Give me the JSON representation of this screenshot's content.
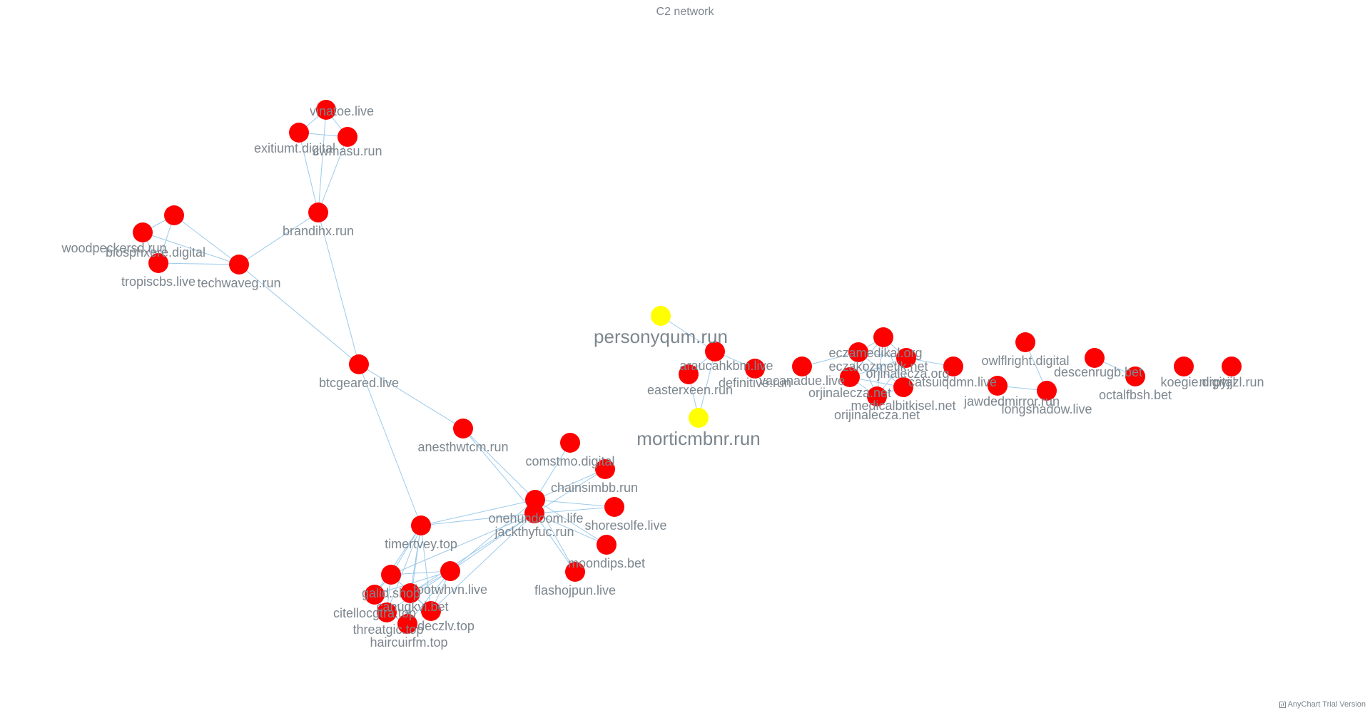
{
  "title": "C2 network",
  "credits": "AnyChart Trial Version",
  "colors": {
    "edge": "#9ccaeb",
    "node_default": "#ff0000",
    "node_highlight": "#ffff00",
    "label": "#7c868e"
  },
  "nodes": [
    {
      "id": "vinatoe.live"
    },
    {
      "id": "exitiumt.digital"
    },
    {
      "id": "cwmasu.run"
    },
    {
      "id": "brandihx.run"
    },
    {
      "id": "woodpeckersd.run"
    },
    {
      "id": "biosphxere.digital"
    },
    {
      "id": "tropiscbs.live"
    },
    {
      "id": "techwaveg.run"
    },
    {
      "id": "btcgeared.live"
    },
    {
      "id": "anesthwtcm.run"
    },
    {
      "id": "comstmo.digital"
    },
    {
      "id": "chainsimbb.run"
    },
    {
      "id": "onehundoom.life"
    },
    {
      "id": "jackthyfuc.run"
    },
    {
      "id": "shoresolfe.live"
    },
    {
      "id": "moondips.bet"
    },
    {
      "id": "flashojpun.live"
    },
    {
      "id": "timertvey.top"
    },
    {
      "id": "footwhvn.live"
    },
    {
      "id": "galid.shop"
    },
    {
      "id": "citellocgtra.top"
    },
    {
      "id": "canugkvi.bet"
    },
    {
      "id": "threatgic.top"
    },
    {
      "id": "deczlv.top"
    },
    {
      "id": "haircuirfm.top"
    },
    {
      "id": "personyqum.run",
      "highlight": true
    },
    {
      "id": "araucahkbm.live"
    },
    {
      "id": "easterxeen.run"
    },
    {
      "id": "definitive.run"
    },
    {
      "id": "morticmbnr.run",
      "highlight": true
    },
    {
      "id": "vacanadue.live"
    },
    {
      "id": "eczamedikal.org"
    },
    {
      "id": "eczakozmetik.net"
    },
    {
      "id": "orjinalecza.org"
    },
    {
      "id": "orjinalecza.net"
    },
    {
      "id": "medicalbitkisel.net"
    },
    {
      "id": "orijinalecza.net"
    },
    {
      "id": "catsuiqdmn.live"
    },
    {
      "id": "owlflright.digital"
    },
    {
      "id": "jawdedmirror.run"
    },
    {
      "id": "longshadow.live"
    },
    {
      "id": "descenrugb.bet"
    },
    {
      "id": "octalfbsh.bet"
    },
    {
      "id": "koegie.digital"
    },
    {
      "id": "nirpyjjzl.run"
    }
  ],
  "edges": [
    [
      "vinatoe.live",
      "exitiumt.digital"
    ],
    [
      "vinatoe.live",
      "cwmasu.run"
    ],
    [
      "vinatoe.live",
      "brandihx.run"
    ],
    [
      "exitiumt.digital",
      "cwmasu.run"
    ],
    [
      "exitiumt.digital",
      "brandihx.run"
    ],
    [
      "cwmasu.run",
      "brandihx.run"
    ],
    [
      "brandihx.run",
      "techwaveg.run"
    ],
    [
      "brandihx.run",
      "btcgeared.live"
    ],
    [
      "woodpeckersd.run",
      "biosphxere.digital"
    ],
    [
      "woodpeckersd.run",
      "tropiscbs.live"
    ],
    [
      "woodpeckersd.run",
      "techwaveg.run"
    ],
    [
      "biosphxere.digital",
      "tropiscbs.live"
    ],
    [
      "biosphxere.digital",
      "techwaveg.run"
    ],
    [
      "tropiscbs.live",
      "techwaveg.run"
    ],
    [
      "techwaveg.run",
      "btcgeared.live"
    ],
    [
      "btcgeared.live",
      "anesthwtcm.run"
    ],
    [
      "btcgeared.live",
      "timertvey.top"
    ],
    [
      "anesthwtcm.run",
      "onehundoom.life"
    ],
    [
      "anesthwtcm.run",
      "jackthyfuc.run"
    ],
    [
      "comstmo.digital",
      "onehundoom.life"
    ],
    [
      "chainsimbb.run",
      "onehundoom.life"
    ],
    [
      "chainsimbb.run",
      "jackthyfuc.run"
    ],
    [
      "onehundoom.life",
      "shoresolfe.live"
    ],
    [
      "onehundoom.life",
      "moondips.bet"
    ],
    [
      "onehundoom.life",
      "flashojpun.live"
    ],
    [
      "onehundoom.life",
      "jackthyfuc.run"
    ],
    [
      "onehundoom.life",
      "timertvey.top"
    ],
    [
      "onehundoom.life",
      "footwhvn.live"
    ],
    [
      "jackthyfuc.run",
      "shoresolfe.live"
    ],
    [
      "jackthyfuc.run",
      "moondips.bet"
    ],
    [
      "jackthyfuc.run",
      "flashojpun.live"
    ],
    [
      "jackthyfuc.run",
      "timertvey.top"
    ],
    [
      "jackthyfuc.run",
      "footwhvn.live"
    ],
    [
      "jackthyfuc.run",
      "galid.shop"
    ],
    [
      "jackthyfuc.run",
      "canugkvi.bet"
    ],
    [
      "jackthyfuc.run",
      "deczlv.top"
    ],
    [
      "timertvey.top",
      "galid.shop"
    ],
    [
      "timertvey.top",
      "citellocgtra.top"
    ],
    [
      "timertvey.top",
      "canugkvi.bet"
    ],
    [
      "timertvey.top",
      "threatgic.top"
    ],
    [
      "timertvey.top",
      "deczlv.top"
    ],
    [
      "timertvey.top",
      "haircuirfm.top"
    ],
    [
      "footwhvn.live",
      "galid.shop"
    ],
    [
      "footwhvn.live",
      "citellocgtra.top"
    ],
    [
      "footwhvn.live",
      "canugkvi.bet"
    ],
    [
      "footwhvn.live",
      "threatgic.top"
    ],
    [
      "footwhvn.live",
      "deczlv.top"
    ],
    [
      "footwhvn.live",
      "haircuirfm.top"
    ],
    [
      "galid.shop",
      "citellocgtra.top"
    ],
    [
      "galid.shop",
      "threatgic.top"
    ],
    [
      "galid.shop",
      "canugkvi.bet"
    ],
    [
      "citellocgtra.top",
      "threatgic.top"
    ],
    [
      "canugkvi.bet",
      "deczlv.top"
    ],
    [
      "threatgic.top",
      "haircuirfm.top"
    ],
    [
      "deczlv.top",
      "haircuirfm.top"
    ],
    [
      "personyqum.run",
      "araucahkbm.live"
    ],
    [
      "araucahkbm.live",
      "easterxeen.run"
    ],
    [
      "araucahkbm.live",
      "definitive.run"
    ],
    [
      "araucahkbm.live",
      "morticmbnr.run"
    ],
    [
      "easterxeen.run",
      "morticmbnr.run"
    ],
    [
      "vacanadue.live",
      "eczakozmetik.net"
    ],
    [
      "eczamedikal.org",
      "eczakozmetik.net"
    ],
    [
      "eczamedikal.org",
      "orjinalecza.org"
    ],
    [
      "eczamedikal.org",
      "orjinalecza.net"
    ],
    [
      "eczamedikal.org",
      "medicalbitkisel.net"
    ],
    [
      "eczamedikal.org",
      "orijinalecza.net"
    ],
    [
      "eczakozmetik.net",
      "orjinalecza.org"
    ],
    [
      "eczakozmetik.net",
      "orjinalecza.net"
    ],
    [
      "eczakozmetik.net",
      "medicalbitkisel.net"
    ],
    [
      "eczakozmetik.net",
      "orijinalecza.net"
    ],
    [
      "orjinalecza.org",
      "orjinalecza.net"
    ],
    [
      "orjinalecza.org",
      "medicalbitkisel.net"
    ],
    [
      "orjinalecza.org",
      "orijinalecza.net"
    ],
    [
      "orjinalecza.org",
      "catsuiqdmn.live"
    ],
    [
      "orjinalecza.net",
      "medicalbitkisel.net"
    ],
    [
      "orjinalecza.net",
      "orijinalecza.net"
    ],
    [
      "medicalbitkisel.net",
      "orijinalecza.net"
    ],
    [
      "owlflright.digital",
      "longshadow.live"
    ],
    [
      "jawdedmirror.run",
      "longshadow.live"
    ],
    [
      "descenrugb.bet",
      "octalfbsh.bet"
    ]
  ]
}
